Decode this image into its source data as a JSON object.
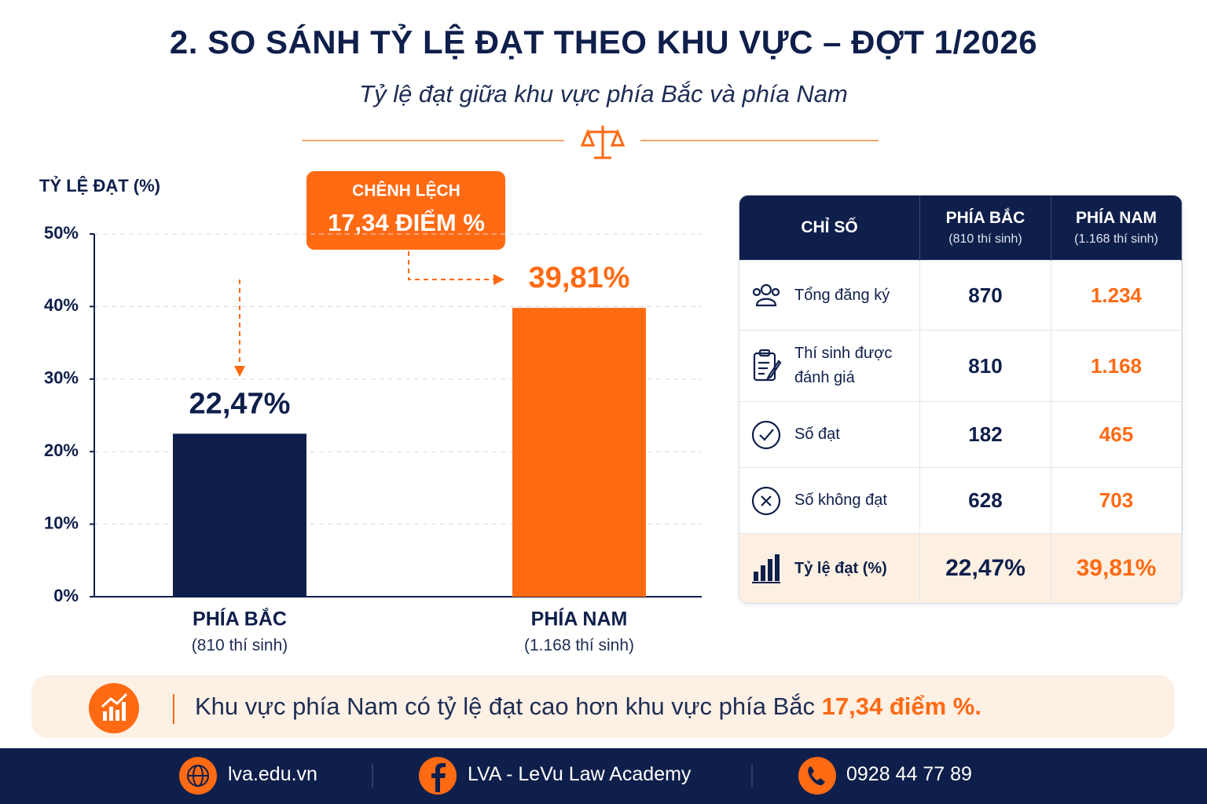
{
  "header": {
    "title": "2. SO SÁNH TỶ LỆ ĐẠT THEO KHU VỰC – ĐỢT 1/2026",
    "subtitle": "Tỷ lệ đạt giữa khu vực phía Bắc và phía Nam"
  },
  "chart_data": {
    "type": "bar",
    "y_label": "TỶ LỆ ĐẠT (%)",
    "categories": [
      "PHÍA BẮC",
      "PHÍA NAM"
    ],
    "category_notes": [
      "(810 thí sinh)",
      "(1.168 thí sinh)"
    ],
    "values": [
      22.47,
      39.81
    ],
    "value_labels": [
      "22,47%",
      "39,81%"
    ],
    "colors": [
      "#0f1f4b",
      "#ff6a13"
    ],
    "ylim": [
      0,
      50
    ],
    "yticks": [
      {
        "value": 0,
        "label": "0%"
      },
      {
        "value": 10,
        "label": "10%"
      },
      {
        "value": 20,
        "label": "20%"
      },
      {
        "value": 30,
        "label": "30%"
      },
      {
        "value": 40,
        "label": "40%"
      },
      {
        "value": 50,
        "label": "50%"
      }
    ],
    "grid": true,
    "annotation": {
      "title": "CHÊNH LỆCH",
      "text": "17,34 ĐIỂM %"
    }
  },
  "table": {
    "headers": [
      "CHỈ SỐ",
      "PHÍA BẮC",
      "PHÍA NAM"
    ],
    "header_notes": [
      "(810 thí sinh)",
      "(1.168 thí sinh)"
    ],
    "rows": [
      [
        "Tổng đăng ký",
        "870",
        "1.234"
      ],
      [
        "Thí sinh được đánh giá",
        "810",
        "1.168"
      ],
      [
        "Số đạt",
        "182",
        "465"
      ],
      [
        "Số không đạt",
        "628",
        "703"
      ],
      [
        "Tỷ lệ đạt (%)",
        "22,47%",
        "39,81%"
      ]
    ]
  },
  "callout": {
    "text": "Khu vực phía Nam có tỷ lệ đạt cao hơn khu vực phía Bắc",
    "highlight": "17,34 điểm %."
  },
  "footer": [
    "lva.edu.vn",
    "LVA - LeVu Law Academy",
    "0928 44 77 89"
  ]
}
